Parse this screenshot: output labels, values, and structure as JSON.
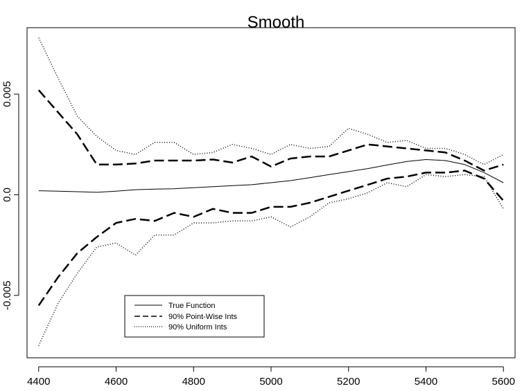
{
  "chart_data": {
    "type": "line",
    "title": "Smooth",
    "xlabel": "",
    "ylabel": "",
    "xlim": [
      4370,
      5630
    ],
    "ylim": [
      -0.0081,
      0.0083
    ],
    "x_ticks": [
      {
        "value": 4400,
        "label": "4400"
      },
      {
        "value": 4600,
        "label": "4600"
      },
      {
        "value": 4800,
        "label": "4800"
      },
      {
        "value": 5000,
        "label": "5000"
      },
      {
        "value": 5200,
        "label": "5200"
      },
      {
        "value": 5400,
        "label": "5400"
      },
      {
        "value": 5600,
        "label": "5600"
      }
    ],
    "y_ticks": [
      {
        "value": -0.005,
        "label": "-0.005"
      },
      {
        "value": 0,
        "label": "0.0"
      },
      {
        "value": 0.005,
        "label": "0.005"
      }
    ],
    "grid": false,
    "legend_position": "bottom-left",
    "x": [
      4400,
      4450,
      4500,
      4550,
      4600,
      4650,
      4700,
      4750,
      4800,
      4850,
      4900,
      4950,
      5000,
      5050,
      5100,
      5150,
      5200,
      5250,
      5300,
      5350,
      5400,
      5450,
      5500,
      5550,
      5600
    ],
    "series": [
      {
        "name": "True Function",
        "style": "solid",
        "stroke_width": 1,
        "values": [
          0.0002,
          0.00018,
          0.00015,
          0.00012,
          0.00018,
          0.00025,
          0.00028,
          0.0003,
          0.00035,
          0.0004,
          0.00045,
          0.0005,
          0.0006,
          0.0007,
          0.00085,
          0.001,
          0.00115,
          0.0013,
          0.00148,
          0.00165,
          0.00175,
          0.0017,
          0.0015,
          0.0011,
          0.0006
        ]
      },
      {
        "name": "90% Point-Wise Ints",
        "style": "dashed",
        "stroke_width": 2.5,
        "bands": [
          [
            0.0052,
            0.0041,
            0.003,
            0.0015,
            0.0015,
            0.00155,
            0.0017,
            0.0017,
            0.0017,
            0.00175,
            0.0016,
            0.0019,
            0.0014,
            0.0018,
            0.0019,
            0.0019,
            0.0022,
            0.0025,
            0.0024,
            0.0023,
            0.0022,
            0.0021,
            0.0017,
            0.0012,
            0.0015
          ],
          [
            -0.0055,
            -0.0041,
            -0.0029,
            -0.0021,
            -0.0014,
            -0.0012,
            -0.0013,
            -0.0009,
            -0.0011,
            -0.0007,
            -0.0009,
            -0.0009,
            -0.0006,
            -0.0006,
            -0.0004,
            -0.0001,
            0.0002,
            0.0005,
            0.0008,
            0.0009,
            0.0011,
            0.0011,
            0.0012,
            0.0008,
            -0.0003
          ]
        ]
      },
      {
        "name": "90% Uniform Ints",
        "style": "dotted",
        "stroke_width": 1.5,
        "bands": [
          [
            0.0078,
            0.0058,
            0.0039,
            0.0029,
            0.0022,
            0.002,
            0.0026,
            0.0026,
            0.002,
            0.0021,
            0.0025,
            0.0023,
            0.002,
            0.0025,
            0.0023,
            0.0024,
            0.0033,
            0.003,
            0.0026,
            0.0027,
            0.0023,
            0.0023,
            0.002,
            0.0015,
            0.002
          ],
          [
            -0.0075,
            -0.0054,
            -0.0039,
            -0.0026,
            -0.0024,
            -0.003,
            -0.002,
            -0.002,
            -0.0014,
            -0.0014,
            -0.0013,
            -0.0013,
            -0.0011,
            -0.0016,
            -0.0011,
            -0.0004,
            -0.0002,
            0.0001,
            0.0006,
            0.0004,
            0.001,
            0.0009,
            0.001,
            0.0009,
            -0.0007
          ]
        ]
      }
    ]
  }
}
